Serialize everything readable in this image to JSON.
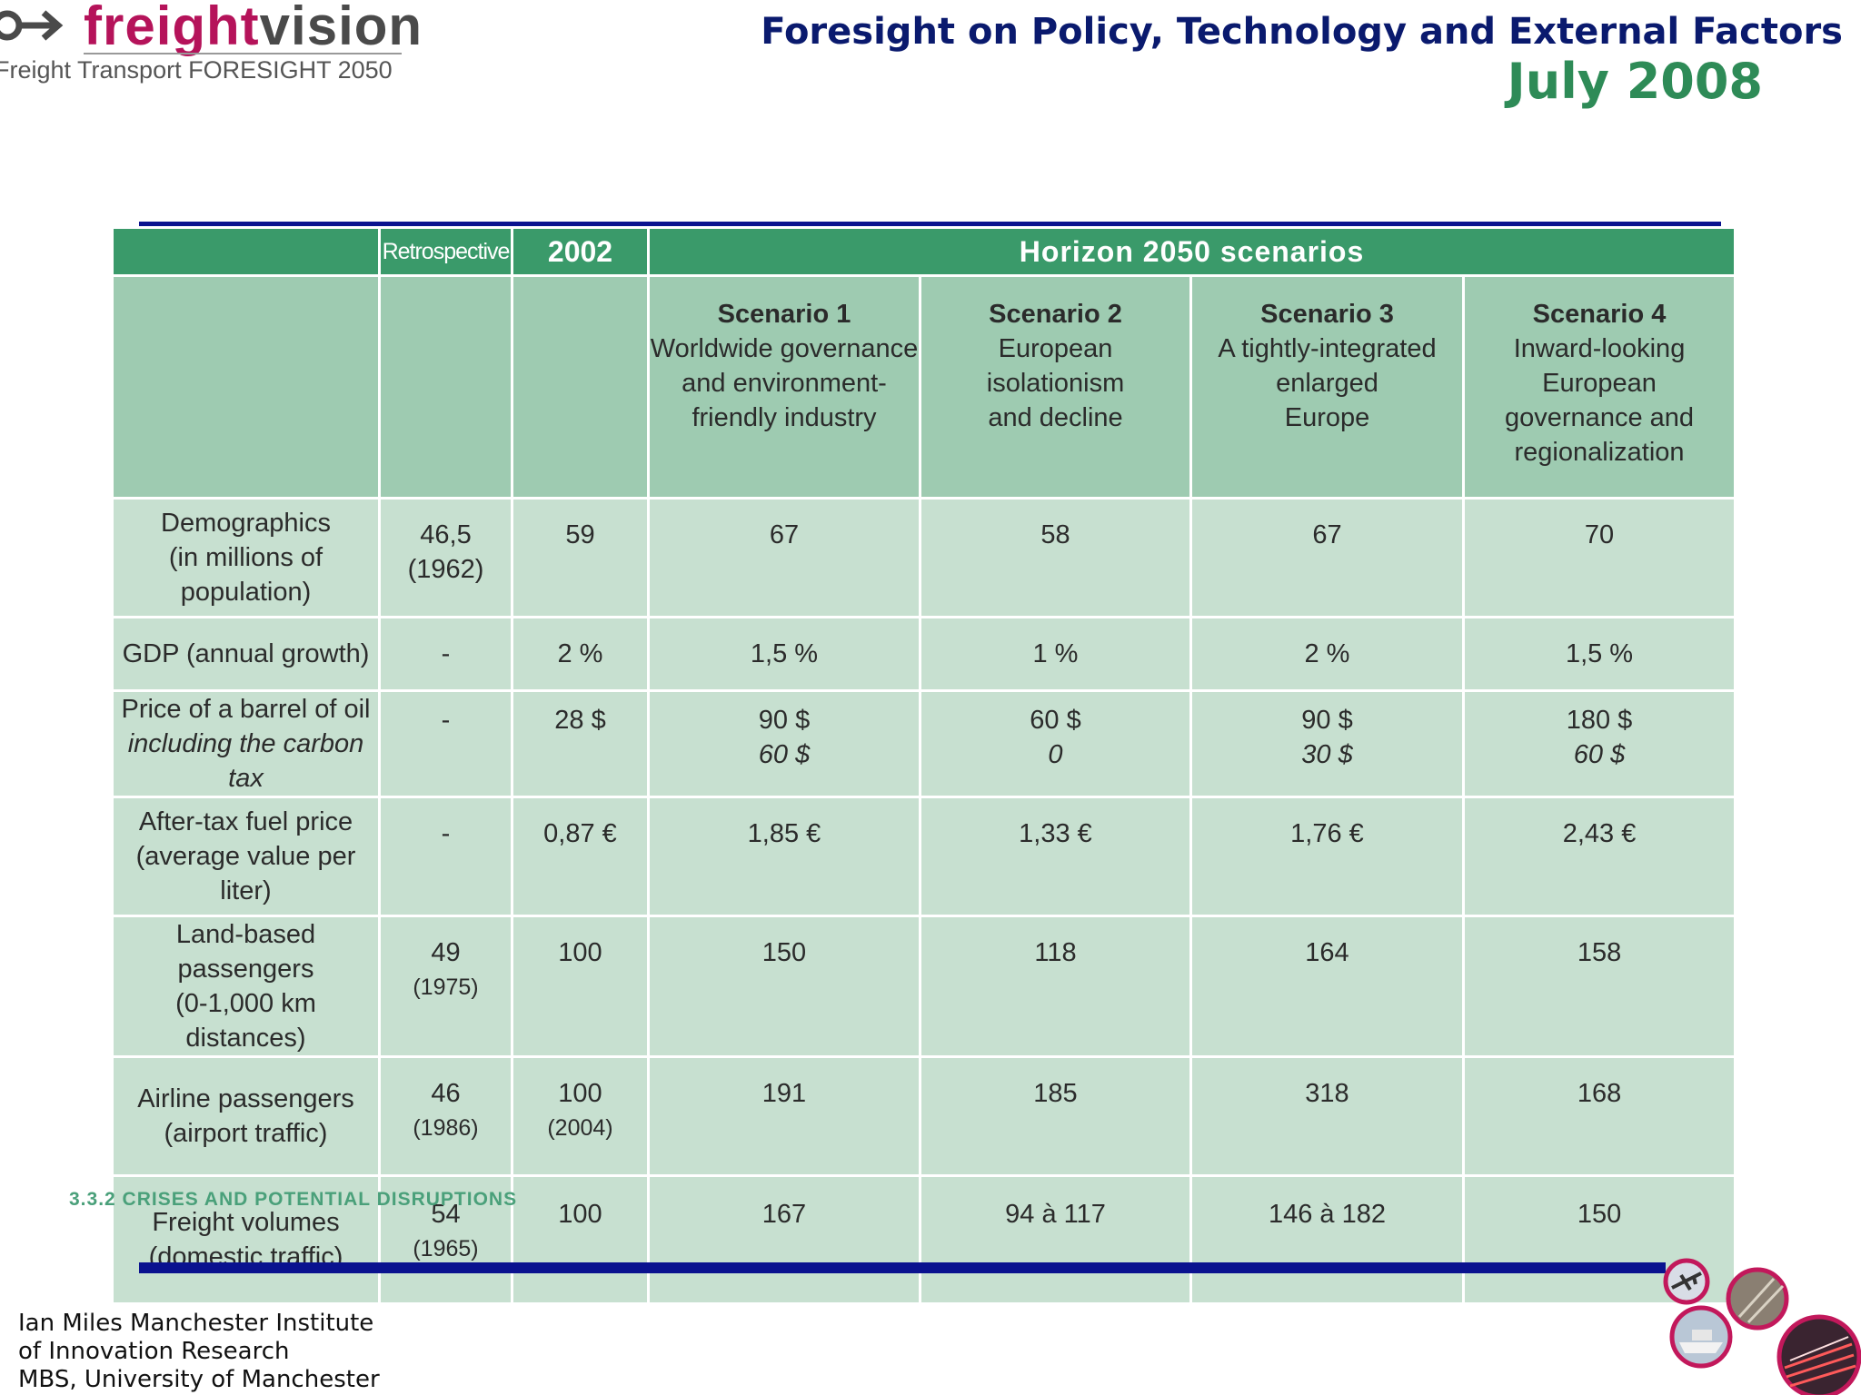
{
  "logo": {
    "word_part1": "freight",
    "word_part2": "vision",
    "tagline": "Freight Transport FORESIGHT 2050"
  },
  "header": {
    "title": "Foresight on Policy, Technology and External Factors",
    "date": "July 2008"
  },
  "table": {
    "header": {
      "retrospective": "Retrospective",
      "year": "2002",
      "horizon": "Horizon 2050 scenarios"
    },
    "scenarios": [
      {
        "title": "Scenario 1",
        "desc": [
          "Worldwide governance",
          "and environment-",
          "friendly industry"
        ]
      },
      {
        "title": "Scenario 2",
        "desc": [
          "European",
          "isolationism",
          "and decline"
        ]
      },
      {
        "title": "Scenario 3",
        "desc": [
          "A tightly-integrated",
          "enlarged",
          "Europe"
        ]
      },
      {
        "title": "Scenario 4",
        "desc": [
          "Inward-looking",
          "European",
          "governance and",
          "regionalization"
        ]
      }
    ],
    "rows": {
      "demographics": {
        "label": [
          "Demographics",
          "(in millions of population)"
        ],
        "retro": "46,5",
        "retro_note": "(1962)",
        "y2002": "59",
        "s1": "67",
        "s2": "58",
        "s3": "67",
        "s4": "70"
      },
      "gdp": {
        "label": "GDP (annual growth)",
        "retro": "-",
        "y2002": "2 %",
        "s1": "1,5 %",
        "s2": "1 %",
        "s3": "2 %",
        "s4": "1,5 %"
      },
      "oil": {
        "label": "Price of a barrel of oil",
        "label_sub": "including the carbon tax",
        "retro": "-",
        "y2002": "28 $",
        "s1": "90 $",
        "s1_sub": "60 $",
        "s2": "60 $",
        "s2_sub": "0",
        "s3": "90 $",
        "s3_sub": "30 $",
        "s4": "180 $",
        "s4_sub": "60 $"
      },
      "fuel": {
        "label": [
          "After-tax fuel price",
          "(average value per liter)"
        ],
        "retro": "-",
        "y2002": "0,87 €",
        "s1": "1,85 €",
        "s2": "1,33 €",
        "s3": "1,76 €",
        "s4": "2,43 €"
      },
      "land": {
        "label": [
          "Land-based passengers",
          "(0-1,000 km distances)"
        ],
        "retro": "49",
        "retro_note": "(1975)",
        "y2002": "100",
        "s1": "150",
        "s2": "118",
        "s3": "164",
        "s4": "158"
      },
      "air": {
        "label": [
          "Airline passengers",
          "(airport traffic)"
        ],
        "retro": "46",
        "retro_note": "(1986)",
        "y2002": "100",
        "y2002_note": "(2004)",
        "s1": "191",
        "s2": "185",
        "s3": "318",
        "s4": "168"
      },
      "freight": {
        "label": [
          "Freight volumes",
          "(domestic traffic)"
        ],
        "retro": "54",
        "retro_note": "(1965)",
        "y2002": "100",
        "s1": "167",
        "s2": "94 à 117",
        "s3": "146 à 182",
        "s4": "150"
      }
    }
  },
  "section_caption": "3.3.2 CRISES AND POTENTIAL DISRUPTIONS",
  "footer": {
    "author_lines": [
      "Ian Miles Manchester Institute",
      "of Innovation Research",
      "MBS, University of Manchester"
    ]
  },
  "colors": {
    "header_green": "#3a9a6a",
    "cell_green": "#c7e0d0",
    "navy": "#0a1a6e",
    "rule_blue": "#0a128f",
    "logo_magenta": "#b5135a",
    "date_green": "#2e8b57"
  },
  "icons": [
    "logo-arrow-icon",
    "airplane-photo-icon",
    "ship-photo-icon",
    "rail-photo-icon",
    "highway-photo-icon"
  ]
}
